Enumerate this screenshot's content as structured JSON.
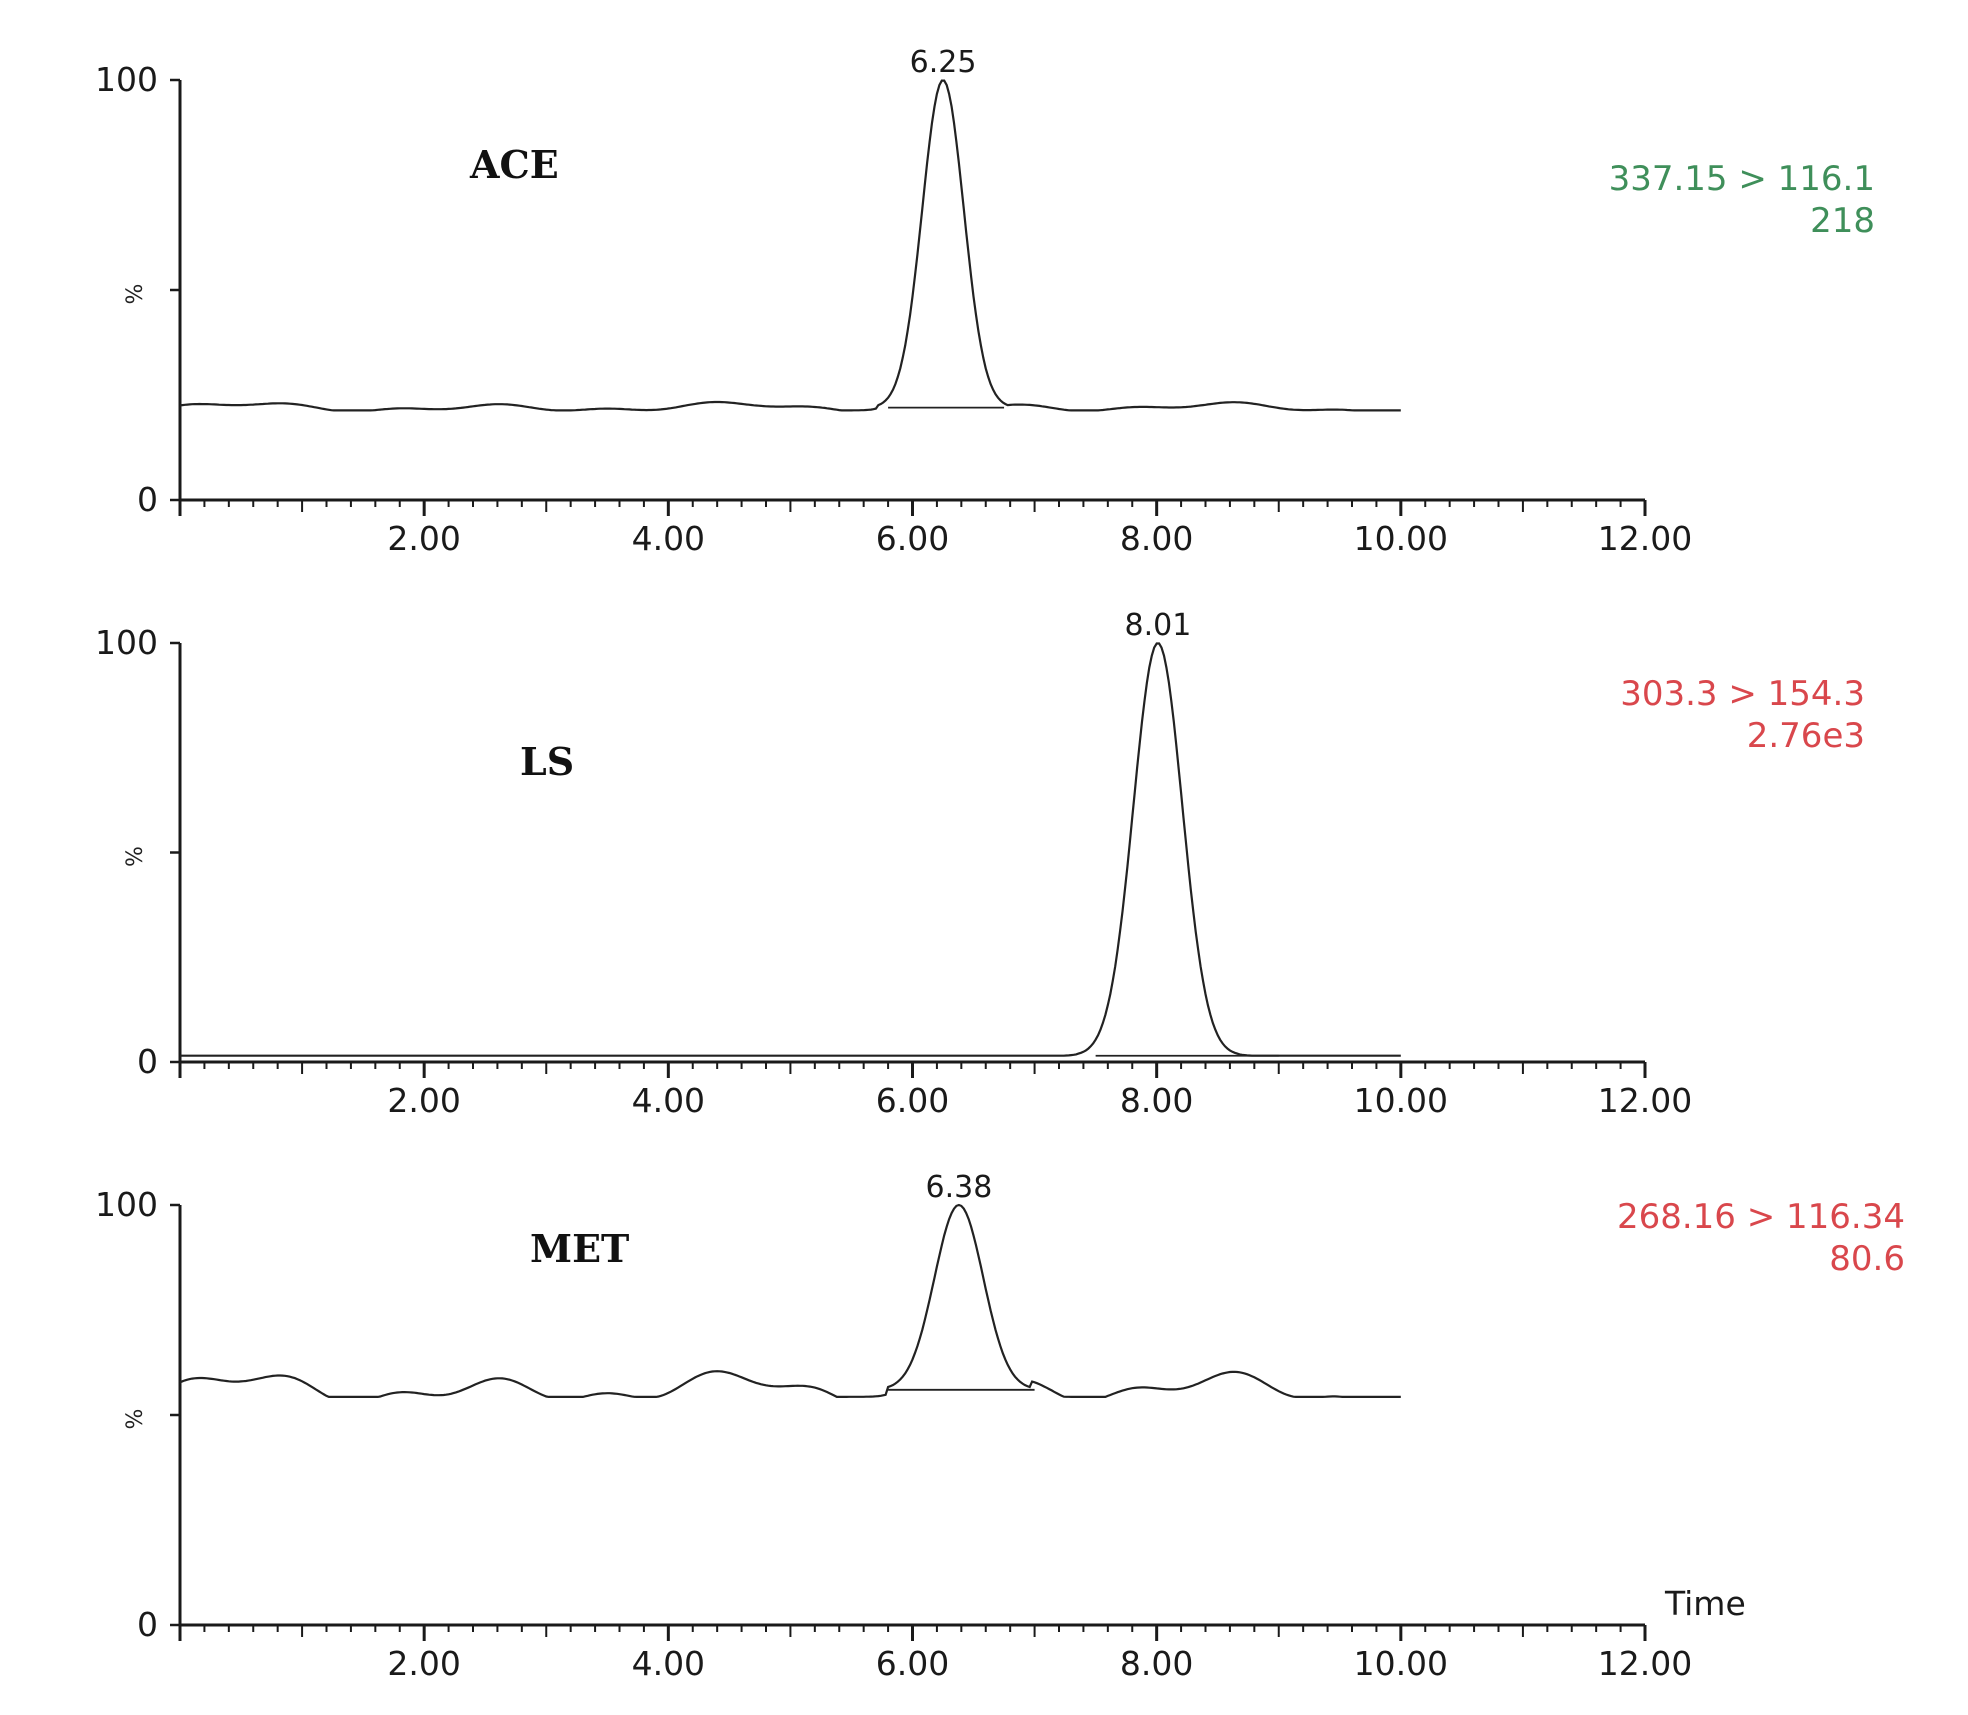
{
  "chart_data": [
    {
      "type": "line",
      "compound": "ACE",
      "peak_label": "6.25",
      "transition": "337.15 > 116.1",
      "intensity": "218",
      "info_color": "#3f8f5a",
      "ylabel": "%",
      "xlim": [
        0,
        12
      ],
      "ylim": [
        0,
        100
      ],
      "x_ticks": [
        "2.00",
        "4.00",
        "6.00",
        "8.00",
        "10.00",
        "12.00"
      ],
      "y_ticks": [
        "0",
        "100"
      ],
      "xlabel": "",
      "peak": {
        "rt": 6.25,
        "width": 0.17,
        "height": 100,
        "base_start": 5.8,
        "base_end": 6.75
      },
      "trace": {
        "x_end": 10.0,
        "noise_level": 22,
        "noise_amp": 1.2
      }
    },
    {
      "type": "line",
      "compound": "LS",
      "peak_label": "8.01",
      "transition": "303.3 > 154.3",
      "intensity": "2.76e3",
      "info_color": "#d9474c",
      "ylabel": "%",
      "xlim": [
        0,
        12
      ],
      "ylim": [
        0,
        100
      ],
      "x_ticks": [
        "2.00",
        "4.00",
        "6.00",
        "8.00",
        "10.00",
        "12.00"
      ],
      "y_ticks": [
        "0",
        "100"
      ],
      "xlabel": "",
      "peak": {
        "rt": 8.01,
        "width": 0.2,
        "height": 100,
        "base_start": 7.5,
        "base_end": 9.0
      },
      "trace": {
        "x_end": 10.0,
        "noise_level": 1.5,
        "noise_amp": 0
      }
    },
    {
      "type": "line",
      "compound": "MET",
      "peak_label": "6.38",
      "transition": "268.16 > 116.34",
      "intensity": "80.6",
      "info_color": "#d9474c",
      "ylabel": "%",
      "xlim": [
        0,
        12
      ],
      "ylim": [
        0,
        100
      ],
      "x_ticks": [
        "2.00",
        "4.00",
        "6.00",
        "8.00",
        "10.00",
        "12.00"
      ],
      "y_ticks": [
        "0",
        "100"
      ],
      "xlabel": "Time",
      "peak": {
        "rt": 6.38,
        "width": 0.2,
        "height": 100,
        "base_start": 5.8,
        "base_end": 7.0
      },
      "trace": {
        "x_end": 10.0,
        "noise_level": 56,
        "noise_amp": 4
      }
    }
  ]
}
